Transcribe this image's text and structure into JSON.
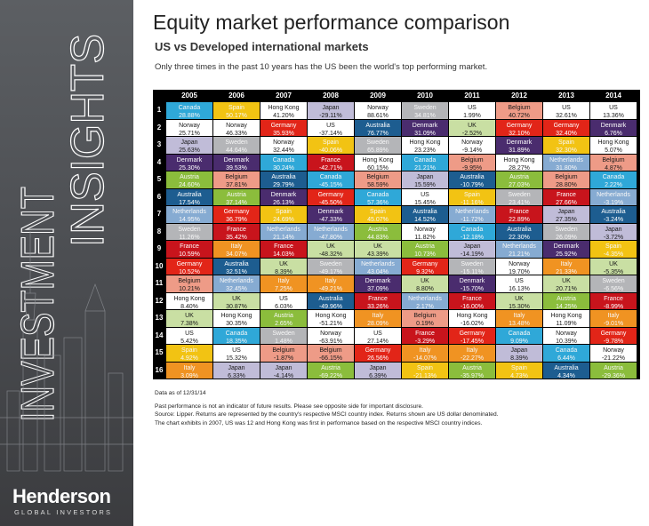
{
  "sidebar": {
    "title_line1": "INVESTMENT",
    "title_line2": "INSIGHTS",
    "brand": "Henderson",
    "brand_sub": "GLOBAL INVESTORS"
  },
  "header": {
    "title": "Equity market performance comparison",
    "subtitle": "US vs Developed international markets",
    "intro": "Only three times in the past 10 years has the US been the world's top performing market."
  },
  "notes": {
    "date": "Data as of 12/31/14",
    "lines": [
      "Past performance is not an indicator of future results.  Please see opposite side for important disclosure.",
      "Source: Lipper.  Returns are represented by the country's respective MSCI country index.  Returns shown are US dollar denominated.",
      "The chart exhibits in 2007, US was 12 and Hong Kong was first in performance based on the respective MSCI country indices."
    ]
  },
  "colors": {
    "Canada": "#2fa8d8",
    "Norway": "#ffffff",
    "Japan": "#c0bcd8",
    "Denmark": "#4a2c6e",
    "Austria": "#8bbd3c",
    "Australia": "#1d5d90",
    "Netherlands": "#86abd2",
    "Sweden": "#b4b5b8",
    "France": "#c8141c",
    "Germany": "#e22518",
    "UK": "#c9dfa3",
    "Belgium": "#ee9b87",
    "Hong Kong": "#ffffff",
    "US": "#ffffff",
    "Spain": "#f2c313",
    "Italy": "#f09322"
  },
  "chart_data": {
    "type": "table",
    "title": "Equity market performance comparison",
    "years": [
      "2005",
      "2006",
      "2007",
      "2008",
      "2009",
      "2010",
      "2011",
      "2012",
      "2013",
      "2014"
    ],
    "ranks": [
      "1",
      "2",
      "3",
      "4",
      "5",
      "6",
      "7",
      "8",
      "9",
      "10",
      "11",
      "12",
      "13",
      "14",
      "15",
      "16"
    ],
    "columns": [
      [
        [
          "Canada",
          "28.88%"
        ],
        [
          "Norway",
          "25.71%"
        ],
        [
          "Japan",
          "25.63%"
        ],
        [
          "Denmark",
          "25.30%"
        ],
        [
          "Austria",
          "24.60%"
        ],
        [
          "Australia",
          "17.54%"
        ],
        [
          "Netherlands",
          "14.95%"
        ],
        [
          "Sweden",
          "11.26%"
        ],
        [
          "France",
          "10.59%"
        ],
        [
          "Germany",
          "10.52%"
        ],
        [
          "Belgium",
          "10.21%"
        ],
        [
          "Hong Kong",
          "8.40%"
        ],
        [
          "UK",
          "7.38%"
        ],
        [
          "US",
          "5.42%"
        ],
        [
          "Spain",
          "4.92%"
        ],
        [
          "Italy",
          "3.09%"
        ]
      ],
      [
        [
          "Spain",
          "50.17%"
        ],
        [
          "Norway",
          "46.33%"
        ],
        [
          "Sweden",
          "44.64%"
        ],
        [
          "Denmark",
          "39.53%"
        ],
        [
          "Belgium",
          "37.81%"
        ],
        [
          "Austria",
          "37.14%"
        ],
        [
          "Germany",
          "36.79%"
        ],
        [
          "France",
          "35.42%"
        ],
        [
          "Italy",
          "34.07%"
        ],
        [
          "Australia",
          "32.51%"
        ],
        [
          "Netherlands",
          "32.45%"
        ],
        [
          "UK",
          "30.87%"
        ],
        [
          "Hong Kong",
          "30.35%"
        ],
        [
          "Canada",
          "18.35%"
        ],
        [
          "US",
          "15.32%"
        ],
        [
          "Japan",
          "6.33%"
        ]
      ],
      [
        [
          "Hong Kong",
          "41.20%"
        ],
        [
          "Germany",
          "35.93%"
        ],
        [
          "Norway",
          "32.44%"
        ],
        [
          "Canada",
          "30.24%"
        ],
        [
          "Australia",
          "29.79%"
        ],
        [
          "Denmark",
          "26.13%"
        ],
        [
          "Spain",
          "24.69%"
        ],
        [
          "Netherlands",
          "21.14%"
        ],
        [
          "France",
          "14.03%"
        ],
        [
          "UK",
          "8.39%"
        ],
        [
          "Italy",
          "7.25%"
        ],
        [
          "US",
          "6.03%"
        ],
        [
          "Austria",
          "2.65%"
        ],
        [
          "Sweden",
          "1.48%"
        ],
        [
          "Belgium",
          "-1.87%"
        ],
        [
          "Japan",
          "-4.14%"
        ]
      ],
      [
        [
          "Japan",
          "-29.11%"
        ],
        [
          "US",
          "-37.14%"
        ],
        [
          "Spain",
          "-40.06%"
        ],
        [
          "France",
          "-42.71%"
        ],
        [
          "Canada",
          "-45.15%"
        ],
        [
          "Germany",
          "-45.50%"
        ],
        [
          "Denmark",
          "-47.33%"
        ],
        [
          "Netherlands",
          "-47.80%"
        ],
        [
          "UK",
          "-48.32%"
        ],
        [
          "Sweden",
          "-49.17%"
        ],
        [
          "Italy",
          "-49.21%"
        ],
        [
          "Australia",
          "-49.96%"
        ],
        [
          "Hong Kong",
          "-51.21%"
        ],
        [
          "Norway",
          "-63.91%"
        ],
        [
          "Belgium",
          "-66.15%"
        ],
        [
          "Austria",
          "-69.22%"
        ]
      ],
      [
        [
          "Norway",
          "88.61%"
        ],
        [
          "Australia",
          "76.77%"
        ],
        [
          "Sweden",
          "65.89%"
        ],
        [
          "Hong Kong",
          "60.15%"
        ],
        [
          "Belgium",
          "58.59%"
        ],
        [
          "Canada",
          "57.36%"
        ],
        [
          "Spain",
          "45.07%"
        ],
        [
          "Austria",
          "44.83%"
        ],
        [
          "UK",
          "43.39%"
        ],
        [
          "Netherlands",
          "43.04%"
        ],
        [
          "Denmark",
          "37.09%"
        ],
        [
          "France",
          "33.26%"
        ],
        [
          "Italy",
          "28.09%"
        ],
        [
          "US",
          "27.14%"
        ],
        [
          "Germany",
          "26.56%"
        ],
        [
          "Japan",
          "6.39%"
        ]
      ],
      [
        [
          "Sweden",
          "34.81%"
        ],
        [
          "Denmark",
          "31.09%"
        ],
        [
          "Hong Kong",
          "23.23%"
        ],
        [
          "Canada",
          "21.21%"
        ],
        [
          "Japan",
          "15.59%"
        ],
        [
          "US",
          "15.45%"
        ],
        [
          "Australia",
          "14.52%"
        ],
        [
          "Norway",
          "11.82%"
        ],
        [
          "Austria",
          "10.73%"
        ],
        [
          "Germany",
          "9.32%"
        ],
        [
          "UK",
          "8.80%"
        ],
        [
          "Netherlands",
          "2.17%"
        ],
        [
          "Belgium",
          "0.19%"
        ],
        [
          "France",
          "-3.29%"
        ],
        [
          "Italy",
          "-14.07%"
        ],
        [
          "Spain",
          "-21.13%"
        ]
      ],
      [
        [
          "US",
          "1.99%"
        ],
        [
          "UK",
          "-2.52%"
        ],
        [
          "Norway",
          "-9.14%"
        ],
        [
          "Belgium",
          "-9.95%"
        ],
        [
          "Australia",
          "-10.79%"
        ],
        [
          "Spain",
          "-11.16%"
        ],
        [
          "Netherlands",
          "-11.72%"
        ],
        [
          "Canada",
          "-12.18%"
        ],
        [
          "Japan",
          "-14.19%"
        ],
        [
          "Sweden",
          "-15.11%"
        ],
        [
          "Denmark",
          "-15.70%"
        ],
        [
          "France",
          "-16.00%"
        ],
        [
          "Hong Kong",
          "-16.02%"
        ],
        [
          "Germany",
          "-17.45%"
        ],
        [
          "Italy",
          "-22.27%"
        ],
        [
          "Austria",
          "-35.97%"
        ]
      ],
      [
        [
          "Belgium",
          "40.72%"
        ],
        [
          "Germany",
          "32.10%"
        ],
        [
          "Denmark",
          "31.89%"
        ],
        [
          "Hong Kong",
          "28.27%"
        ],
        [
          "Austria",
          "27.03%"
        ],
        [
          "Sweden",
          "23.41%"
        ],
        [
          "France",
          "22.89%"
        ],
        [
          "Australia",
          "22.30%"
        ],
        [
          "Netherlands",
          "21.21%"
        ],
        [
          "Norway",
          "19.70%"
        ],
        [
          "US",
          "16.13%"
        ],
        [
          "UK",
          "15.30%"
        ],
        [
          "Italy",
          "13.48%"
        ],
        [
          "Canada",
          "9.09%"
        ],
        [
          "Japan",
          "8.39%"
        ],
        [
          "Spain",
          "4.73%"
        ]
      ],
      [
        [
          "US",
          "32.61%"
        ],
        [
          "Germany",
          "32.40%"
        ],
        [
          "Spain",
          "32.30%"
        ],
        [
          "Netherlands",
          "31.80%"
        ],
        [
          "Belgium",
          "28.80%"
        ],
        [
          "France",
          "27.66%"
        ],
        [
          "Japan",
          "27.35%"
        ],
        [
          "Sweden",
          "26.09%"
        ],
        [
          "Denmark",
          "25.92%"
        ],
        [
          "Italy",
          "21.33%"
        ],
        [
          "UK",
          "20.71%"
        ],
        [
          "Austria",
          "14.25%"
        ],
        [
          "Hong Kong",
          "11.09%"
        ],
        [
          "Norway",
          "10.39%"
        ],
        [
          "Canada",
          "6.44%"
        ],
        [
          "Australia",
          "4.34%"
        ]
      ],
      [
        [
          "US",
          "13.36%"
        ],
        [
          "Denmark",
          "6.76%"
        ],
        [
          "Hong Kong",
          "5.07%"
        ],
        [
          "Belgium",
          "4.87%"
        ],
        [
          "Canada",
          "2.22%"
        ],
        [
          "Netherlands",
          "-3.19%"
        ],
        [
          "Australia",
          "-3.24%"
        ],
        [
          "Japan",
          "-3.72%"
        ],
        [
          "Spain",
          "-4.35%"
        ],
        [
          "UK",
          "-5.35%"
        ],
        [
          "Sweden",
          "-6.56%"
        ],
        [
          "France",
          "-8.99%"
        ],
        [
          "Italy",
          "-9.01%"
        ],
        [
          "Germany",
          "-9.78%"
        ],
        [
          "Norway",
          "-21.22%"
        ],
        [
          "Austria",
          "-29.36%"
        ]
      ]
    ]
  }
}
